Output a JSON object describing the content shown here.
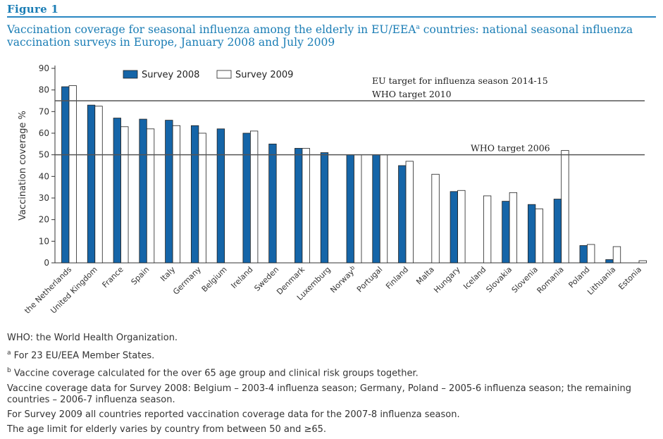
{
  "figure_label": "Figure 1",
  "title": "Vaccination coverage for seasonal influenza among the elderly in EU/EEA",
  "title_sup": "a",
  "title_rest": " countries: national seasonal influenza vaccination surveys in Europe, January 2008 and July 2009",
  "colors": {
    "survey2008": "#1565a8",
    "survey2009": "#ffffff",
    "title": "#1a7db5"
  },
  "chart_data": {
    "type": "bar",
    "ylabel": "Vaccination coverage %",
    "ylim": [
      0,
      90
    ],
    "yticks": [
      0,
      10,
      20,
      30,
      40,
      50,
      60,
      70,
      80,
      90
    ],
    "legend_position": "top-left",
    "categories": [
      "the Netherlands",
      "United Kingdom",
      "France",
      "Spain",
      "Italy",
      "Germany",
      "Belgium",
      "Ireland",
      "Sweden",
      "Denmark",
      "Luxemburg",
      "Norway",
      "Portugal",
      "Finland",
      "Malta",
      "Hungary",
      "Iceland",
      "Slovakia",
      "Slovenia",
      "Romania",
      "Poland",
      "Lithuania",
      "Estonia"
    ],
    "category_sup": [
      "",
      "",
      "",
      "",
      "",
      "",
      "",
      "",
      "",
      "",
      "",
      "b",
      "",
      "",
      "",
      "",
      "",
      "",
      "",
      "",
      "",
      "",
      ""
    ],
    "series": [
      {
        "name": "Survey 2008",
        "values": [
          81.5,
          73,
          67,
          66.5,
          66,
          63.5,
          62,
          60,
          55,
          53,
          51,
          50,
          50,
          45,
          null,
          33,
          null,
          28.5,
          27,
          29.5,
          8,
          1.5,
          null
        ]
      },
      {
        "name": "Survey 2009",
        "values": [
          82,
          72.5,
          63,
          62,
          63.5,
          60,
          null,
          61,
          null,
          53,
          null,
          50,
          50,
          47,
          41,
          33.5,
          31,
          32.5,
          25,
          52,
          8.5,
          7.5,
          1
        ]
      }
    ],
    "reference_lines": [
      {
        "value": 75,
        "labels": [
          "EU target for influenza season 2014-15",
          "WHO target 2010"
        ]
      },
      {
        "value": 50,
        "labels": [
          "WHO target 2006"
        ]
      }
    ]
  },
  "notes": {
    "who": "WHO: the World Health Organization.",
    "a_sup": "a",
    "a": " For 23 EU/EEA Member States.",
    "b_sup": "b",
    "b": " Vaccine coverage calculated for the over 65 age group and clinical risk groups together.",
    "survey2008": "Vaccine coverage data for Survey 2008: Belgium – 2003-4 influenza season; Germany, Poland – 2005-6 influenza season; the remaining countries – 2006-7 influenza season.",
    "survey2009": "For Survey 2009 all countries reported vaccination coverage data for the 2007-8 influenza season.",
    "age": "The age limit for elderly varies by country from between 50 and ≥65."
  }
}
